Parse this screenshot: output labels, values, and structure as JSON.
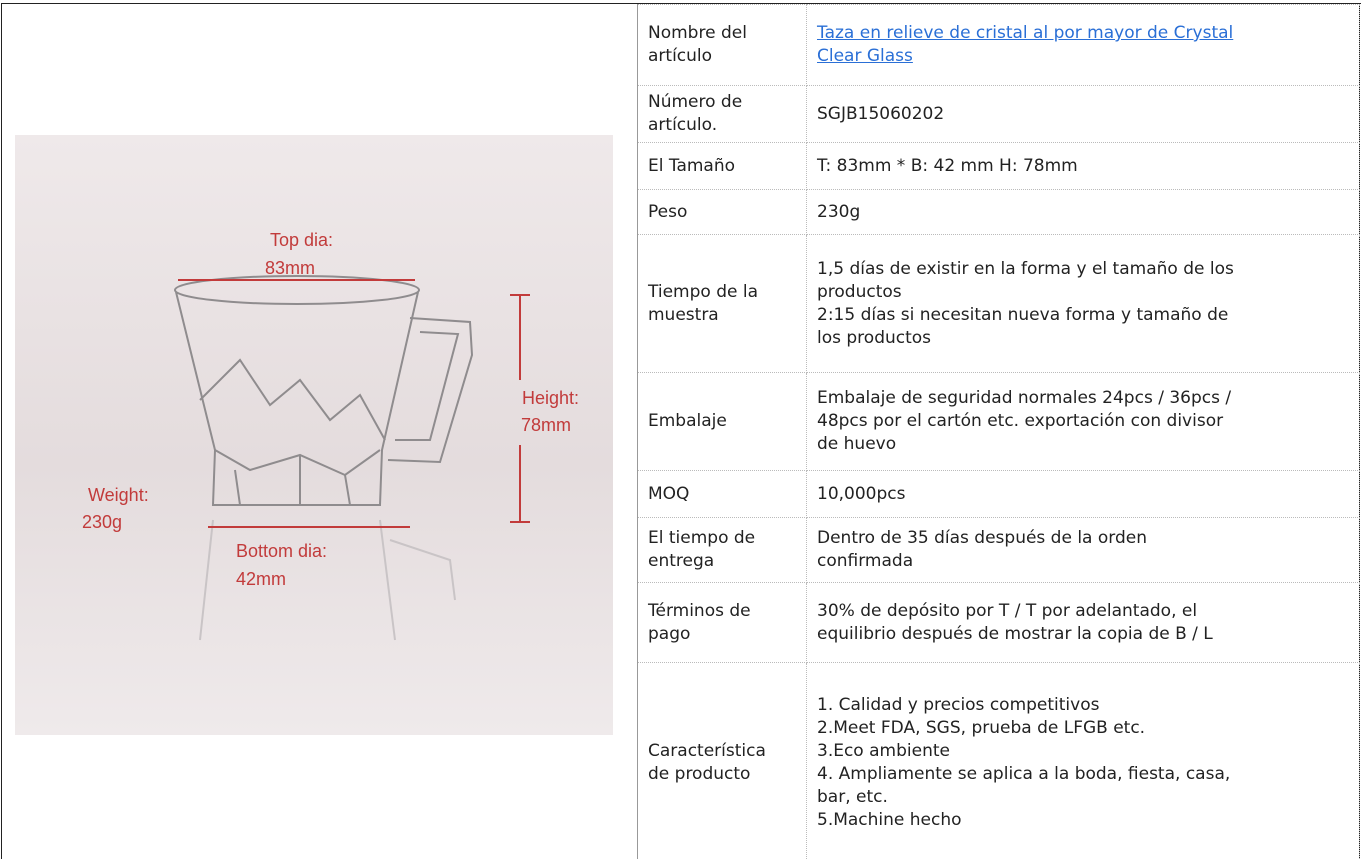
{
  "image": {
    "annotations": {
      "top_dia": [
        "Top dia:",
        "83mm"
      ],
      "height": [
        "Height:",
        "78mm"
      ],
      "weight": [
        "Weight:",
        "230g"
      ],
      "bottom_dia": [
        "Bottom dia:",
        "42mm"
      ]
    }
  },
  "table": {
    "rows": [
      {
        "label": [
          "Nombre del",
          "artículo"
        ],
        "value": [
          "Taza en relieve de cristal al por mayor de Crystal",
          "Clear Glass"
        ],
        "link": true
      },
      {
        "label": [
          "Número de",
          "artículo."
        ],
        "value": [
          "SGJB15060202"
        ]
      },
      {
        "label": [
          "El Tamaño"
        ],
        "value": [
          "T: 83mm * B: 42 mm H: 78mm"
        ]
      },
      {
        "label": [
          "Peso"
        ],
        "value": [
          "230g"
        ]
      },
      {
        "label": [
          "Tiempo de la",
          "muestra"
        ],
        "value": [
          "1,5 días de existir en la forma y el tamaño de los",
          "productos",
          "2:15 días si necesitan nueva forma y tamaño de",
          "los productos"
        ]
      },
      {
        "label": [
          "Embalaje"
        ],
        "value": [
          "Embalaje de seguridad normales 24pcs / 36pcs /",
          "48pcs por el cartón etc. exportación con divisor",
          "de huevo"
        ]
      },
      {
        "label": [
          "MOQ"
        ],
        "value": [
          "10,000pcs"
        ]
      },
      {
        "label": [
          "El tiempo de",
          "entrega"
        ],
        "value": [
          "Dentro de 35 días después de la orden",
          "confirmada"
        ]
      },
      {
        "label": [
          "Términos de",
          "pago"
        ],
        "value": [
          "30% de depósito por T / T por adelantado, el",
          "equilibrio después de mostrar la copia de B / L"
        ]
      },
      {
        "label": [
          "Característica",
          "de producto"
        ],
        "value": [
          "1. Calidad y precios competitivos",
          "2.Meet FDA, SGS, prueba de LFGB etc.",
          "3.Eco ambiente",
          "4. Ampliamente se aplica a la boda, fiesta, casa,",
          "bar, etc.",
          "5.Machine hecho"
        ]
      }
    ]
  }
}
